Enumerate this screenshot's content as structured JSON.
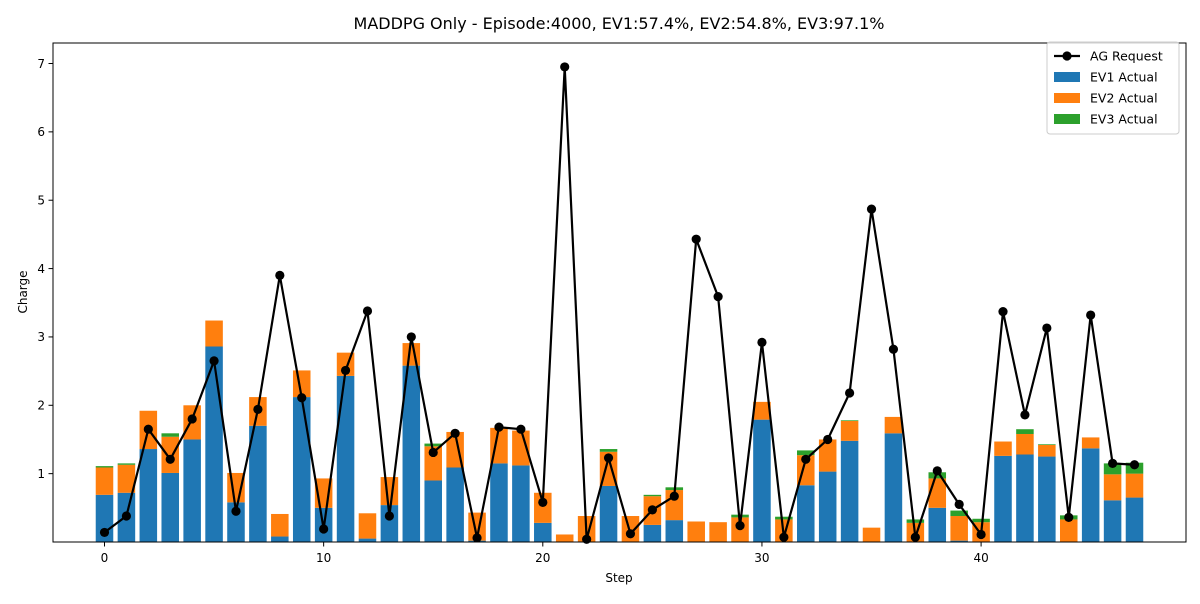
{
  "chart_data": {
    "type": "bar",
    "stacked": true,
    "title": "MADDPG Only - Episode:4000, EV1:57.4%, EV2:54.8%, EV3:97.1%",
    "xlabel": "Step",
    "ylabel": "Charge",
    "xlim": [
      -2.35,
      49.35
    ],
    "ylim": [
      0,
      7.3
    ],
    "x_ticks": [
      0,
      10,
      20,
      30,
      40
    ],
    "y_ticks": [
      1,
      2,
      3,
      4,
      5,
      6,
      7
    ],
    "legend_position": "top-right",
    "x": [
      0,
      1,
      2,
      3,
      4,
      5,
      6,
      7,
      8,
      9,
      10,
      11,
      12,
      13,
      14,
      15,
      16,
      17,
      18,
      19,
      20,
      21,
      22,
      23,
      24,
      25,
      26,
      27,
      28,
      29,
      30,
      31,
      32,
      33,
      34,
      35,
      36,
      37,
      38,
      39,
      40,
      41,
      42,
      43,
      44,
      45,
      46,
      47
    ],
    "series": [
      {
        "name": "EV1 Actual",
        "color": "#1f77b4",
        "values": [
          0.69,
          0.72,
          1.36,
          1.01,
          1.5,
          2.86,
          0.58,
          1.7,
          0.08,
          2.12,
          0.5,
          2.43,
          0.05,
          0.54,
          2.58,
          0.9,
          1.09,
          0.02,
          1.15,
          1.12,
          0.28,
          0.0,
          0.0,
          0.82,
          0.0,
          0.25,
          0.32,
          0.0,
          0.0,
          0.0,
          1.79,
          0.0,
          0.83,
          1.03,
          1.48,
          0.0,
          1.59,
          0.0,
          0.5,
          0.02,
          0.0,
          1.26,
          1.28,
          1.25,
          0.0,
          1.37,
          0.61,
          0.65
        ]
      },
      {
        "name": "EV2 Actual",
        "color": "#ff7f0e",
        "values": [
          0.4,
          0.41,
          0.56,
          0.53,
          0.5,
          0.38,
          0.43,
          0.42,
          0.33,
          0.39,
          0.43,
          0.34,
          0.37,
          0.41,
          0.33,
          0.5,
          0.52,
          0.41,
          0.52,
          0.51,
          0.44,
          0.11,
          0.38,
          0.5,
          0.38,
          0.42,
          0.44,
          0.3,
          0.29,
          0.36,
          0.26,
          0.33,
          0.44,
          0.47,
          0.29,
          0.21,
          0.24,
          0.28,
          0.43,
          0.36,
          0.29,
          0.21,
          0.3,
          0.17,
          0.33,
          0.16,
          0.38,
          0.35
        ]
      },
      {
        "name": "EV3 Actual",
        "color": "#2ca02c",
        "values": [
          0.02,
          0.02,
          0.0,
          0.05,
          0.0,
          0.0,
          0.0,
          0.0,
          0.0,
          0.0,
          0.0,
          0.0,
          0.0,
          0.0,
          0.0,
          0.04,
          0.0,
          0.0,
          0.0,
          0.0,
          0.0,
          0.0,
          0.0,
          0.04,
          0.0,
          0.02,
          0.04,
          0.0,
          0.0,
          0.04,
          0.0,
          0.04,
          0.07,
          0.0,
          0.01,
          0.0,
          0.0,
          0.05,
          0.09,
          0.08,
          0.05,
          0.0,
          0.07,
          0.01,
          0.06,
          0.0,
          0.16,
          0.16
        ]
      }
    ],
    "line_series": {
      "name": "AG Request",
      "color": "#000000",
      "values": [
        0.14,
        0.38,
        1.65,
        1.21,
        1.8,
        2.65,
        0.45,
        1.94,
        3.9,
        2.11,
        0.19,
        2.51,
        3.38,
        0.38,
        3.0,
        1.31,
        1.59,
        0.06,
        1.68,
        1.65,
        0.58,
        6.95,
        0.04,
        1.23,
        0.12,
        0.47,
        0.67,
        4.43,
        3.59,
        0.24,
        2.92,
        0.07,
        1.21,
        1.5,
        2.18,
        4.87,
        2.82,
        0.07,
        1.04,
        0.55,
        0.11,
        3.37,
        1.86,
        3.13,
        0.36,
        3.32,
        1.15,
        1.13
      ]
    },
    "legend": [
      {
        "label": "AG Request",
        "kind": "line",
        "color": "#000000"
      },
      {
        "label": "EV1 Actual",
        "kind": "patch",
        "color": "#1f77b4"
      },
      {
        "label": "EV2 Actual",
        "kind": "patch",
        "color": "#ff7f0e"
      },
      {
        "label": "EV3 Actual",
        "kind": "patch",
        "color": "#2ca02c"
      }
    ]
  }
}
